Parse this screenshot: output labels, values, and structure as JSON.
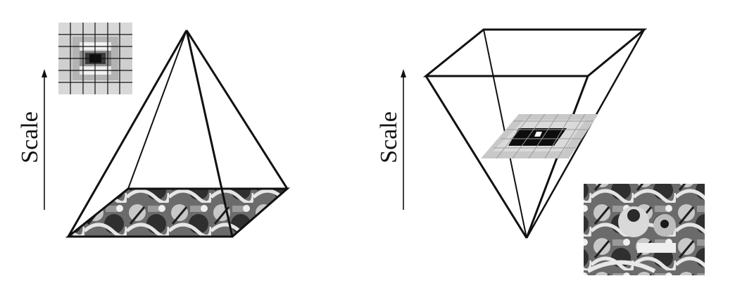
{
  "left_panel": {
    "axis_label": "Scale"
  },
  "right_panel": {
    "axis_label": "Scale"
  },
  "colors": {
    "line": "#111111",
    "filter_light": "#d9d9d9",
    "filter_mid": "#a9a9a9",
    "filter_dark": "#1a1a1a"
  },
  "icons": {
    "left_filter": "laplacian-kernel-icon",
    "image_texture": "graffiti-photo",
    "right_filter": "box-filter-icon"
  }
}
